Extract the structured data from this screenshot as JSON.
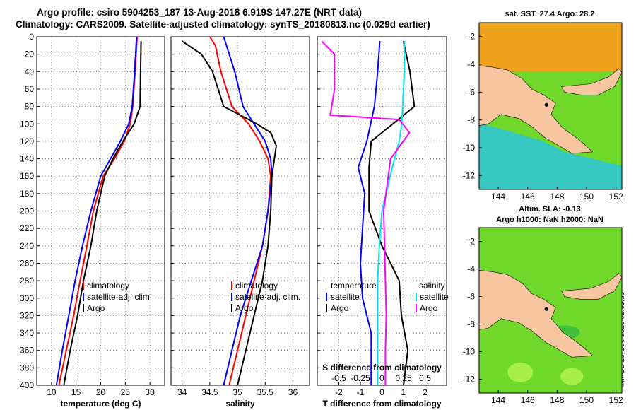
{
  "titles": {
    "line1": "Argo profile: csiro 5904253_187 13-Aug-2018 6.919S 147.27E (NRT data)",
    "line2": "Climatology: CARS2009. Satellite-adjusted climatology: synTS_20180813.nc (0.029d earlier)"
  },
  "maps": {
    "sst_title": "sat. SST: 27.4 Argo: 28.2",
    "sla_title1": "Altim. SLA: -0.13",
    "sla_title2": "Argo h1000: NaN h2000: NaN",
    "lon_ticks": [
      "144",
      "146",
      "148",
      "150",
      "152"
    ],
    "lat_ticks": [
      "-2",
      "-4",
      "-6",
      "-8",
      "-10",
      "-12"
    ],
    "land_color": "#f7c59f",
    "sea_cool_color": "#36c9c2",
    "sea_green_color": "#6fd82a"
  },
  "credit": "©IMOS 20-Dec-2018 02:05:50",
  "colors": {
    "climatology": "#ff0000",
    "satellite": "#0000ff",
    "argo": "#000000",
    "s_climatology": "#ff00ff",
    "s_satellite": "#00e5ee"
  },
  "chart_data": [
    {
      "type": "line",
      "xlabel": "temperature (deg C)",
      "ylabel": "",
      "xlim": [
        7,
        33
      ],
      "ylim": [
        400,
        0
      ],
      "x_ticks": [
        10,
        15,
        20,
        25,
        30
      ],
      "y_ticks": [
        0,
        20,
        40,
        60,
        80,
        100,
        120,
        140,
        160,
        180,
        200,
        220,
        240,
        260,
        280,
        300,
        320,
        340,
        360,
        380,
        400
      ],
      "legend": [
        "climatology",
        "satellite-adj. clim.",
        "Argo"
      ],
      "series": [
        {
          "name": "climatology",
          "color": "#ff0000",
          "depth": [
            0,
            40,
            80,
            100,
            120,
            140,
            160,
            200,
            240,
            280,
            320,
            360,
            400
          ],
          "values": [
            27.4,
            27.0,
            26.5,
            26.0,
            24.8,
            22.8,
            20.5,
            18.5,
            17.2,
            15.8,
            14.5,
            13.0,
            11.5
          ]
        },
        {
          "name": "satellite-adj. clim.",
          "color": "#0000ff",
          "depth": [
            0,
            40,
            80,
            100,
            120,
            140,
            160,
            200,
            240,
            280,
            320,
            360,
            400
          ],
          "values": [
            27.3,
            26.9,
            26.4,
            25.7,
            24.0,
            22.0,
            20.0,
            18.0,
            16.3,
            14.8,
            13.5,
            12.2,
            11.0
          ]
        },
        {
          "name": "Argo",
          "color": "#000000",
          "depth": [
            5,
            40,
            80,
            100,
            120,
            140,
            160,
            200,
            240,
            280,
            320,
            360,
            400
          ],
          "values": [
            28.2,
            28.1,
            28.0,
            26.8,
            24.5,
            22.5,
            20.8,
            19.2,
            18.0,
            16.5,
            15.3,
            13.8,
            12.5
          ]
        }
      ]
    },
    {
      "type": "line",
      "xlabel": "salinity",
      "ylabel": "",
      "xlim": [
        33.8,
        36.3
      ],
      "ylim": [
        400,
        0
      ],
      "x_ticks": [
        34,
        34.5,
        35,
        35.5,
        36
      ],
      "x_tick_labels": [
        "34",
        "34.5",
        "35",
        "35.5",
        "36"
      ],
      "legend": [
        "climatology",
        "satellite-adj. clim.",
        "Argo"
      ],
      "series": [
        {
          "name": "climatology",
          "color": "#ff0000",
          "depth": [
            0,
            10,
            40,
            80,
            100,
            120,
            140,
            160,
            200,
            240,
            280,
            320,
            360,
            400
          ],
          "values": [
            34.5,
            34.6,
            34.7,
            34.9,
            35.2,
            35.4,
            35.55,
            35.6,
            35.55,
            35.45,
            35.3,
            35.15,
            35.0,
            34.85
          ]
        },
        {
          "name": "satellite-adj. clim.",
          "color": "#0000ff",
          "depth": [
            0,
            10,
            40,
            80,
            100,
            120,
            140,
            160,
            200,
            240,
            280,
            320,
            360,
            400
          ],
          "values": [
            34.75,
            34.8,
            34.95,
            35.1,
            35.3,
            35.5,
            35.6,
            35.62,
            35.55,
            35.45,
            35.25,
            35.05,
            34.9,
            34.75
          ]
        },
        {
          "name": "Argo",
          "color": "#000000",
          "depth": [
            5,
            20,
            40,
            80,
            100,
            110,
            125,
            160,
            200,
            240,
            280,
            320,
            360,
            400
          ],
          "values": [
            34.0,
            34.35,
            34.55,
            34.75,
            35.35,
            35.6,
            35.7,
            35.62,
            35.6,
            35.55,
            35.45,
            35.3,
            35.15,
            35.0
          ]
        }
      ]
    },
    {
      "type": "line",
      "xlabel": "T difference from climatology",
      "x2label": "S difference from climatology",
      "ylabel": "",
      "xlim": [
        -3,
        3
      ],
      "ylim": [
        400,
        0
      ],
      "x_ticks": [
        -2,
        -1,
        0,
        1,
        2
      ],
      "x2_ticks": [
        -0.5,
        -0.25,
        0,
        0.25,
        0.5
      ],
      "x2_tick_labels": [
        "-0.5",
        "-0.25",
        "0",
        "0.25",
        "0.5"
      ],
      "x2_lim": [
        -0.75,
        0.75
      ],
      "legend_left_title": "temperature",
      "legend_right_title": "salinity",
      "legend": [
        "satellite",
        "Argo"
      ],
      "series": [
        {
          "name": "T satellite",
          "color": "#0000ff",
          "depth": [
            5,
            40,
            80,
            120,
            150,
            180,
            220,
            260,
            300,
            340,
            400
          ],
          "values": [
            -0.1,
            -0.2,
            -0.35,
            -0.7,
            -1.1,
            -0.8,
            -0.9,
            -1.0,
            -0.9,
            -0.5,
            -0.5
          ]
        },
        {
          "name": "T Argo",
          "color": "#000000",
          "depth": [
            5,
            40,
            80,
            100,
            120,
            150,
            200,
            240,
            280,
            320,
            360,
            400
          ],
          "values": [
            1.0,
            1.3,
            1.5,
            0.5,
            -0.5,
            -0.6,
            -0.6,
            0.0,
            0.8,
            0.9,
            1.2,
            1.0
          ]
        },
        {
          "name": "S satellite",
          "color": "#00e5ee",
          "depth": [
            5,
            40,
            80,
            100,
            120,
            150,
            200,
            240,
            280,
            320,
            360,
            400
          ],
          "values": [
            0.26,
            0.26,
            0.24,
            0.23,
            0.2,
            0.12,
            0.0,
            -0.03,
            -0.05,
            -0.05,
            -0.05,
            -0.05
          ]
        },
        {
          "name": "S Argo",
          "color": "#ff00ff",
          "depth": [
            5,
            20,
            60,
            90,
            95,
            110,
            140,
            200,
            240,
            280,
            320,
            360,
            400
          ],
          "values": [
            -0.7,
            -0.55,
            -0.55,
            -0.6,
            0.2,
            0.32,
            0.1,
            0.02,
            0.03,
            0.04,
            0.05,
            0.04,
            0.04
          ]
        }
      ]
    }
  ]
}
